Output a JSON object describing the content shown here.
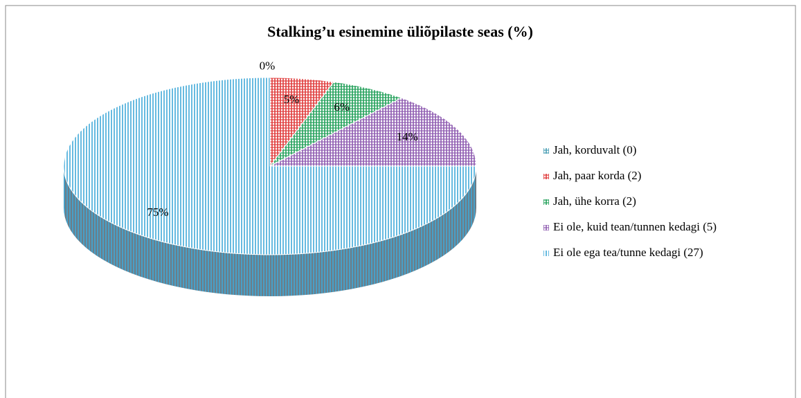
{
  "chart_data": {
    "type": "pie",
    "title": "Stalking’u esinemine üliõpilaste seas (%)",
    "categories": [
      "Jah, korduvalt (0)",
      "Jah, paar korda (2)",
      "Jah, ühe korra (2)",
      "Ei ole, kuid tean/tunnen kedagi (5)",
      "Ei ole ega tea/tunne kedagi (27)"
    ],
    "values": [
      0,
      5,
      6,
      14,
      75
    ],
    "value_labels": [
      "0%",
      "5%",
      "6%",
      "14%",
      "75%"
    ],
    "colors": [
      "#4a9fb5",
      "#e03a3a",
      "#23a05a",
      "#8e5bb0",
      "#3fa9d8"
    ],
    "legend": "right"
  }
}
